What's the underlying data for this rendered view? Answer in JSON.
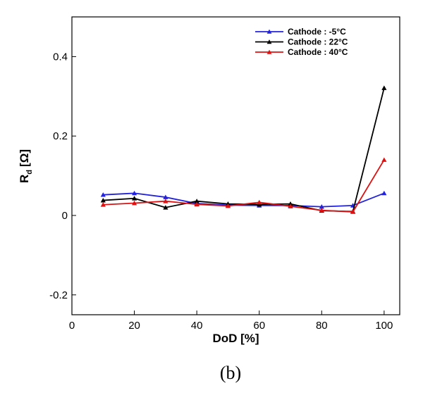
{
  "chart_data": {
    "type": "line",
    "xlabel": "DoD [%]",
    "ylabel_main": "R",
    "ylabel_sub": "d",
    "ylabel_unit": "[Ω]",
    "xlim": [
      0,
      105
    ],
    "ylim": [
      -0.25,
      0.5
    ],
    "xticks": [
      0,
      20,
      40,
      60,
      80,
      100
    ],
    "xtick_labels": [
      "0",
      "20",
      "40",
      "60",
      "80",
      "100"
    ],
    "yticks": [
      -0.2,
      0,
      0.2,
      0.4
    ],
    "ytick_labels": [
      "-0.2",
      "0",
      "0.2",
      "0.4"
    ],
    "x": [
      10,
      20,
      30,
      40,
      50,
      60,
      70,
      80,
      90,
      100
    ],
    "series": [
      {
        "name": "Cathode : -5°C",
        "color": "#2222dd",
        "marker": "triangle",
        "values": [
          0.052,
          0.056,
          0.046,
          0.03,
          0.026,
          0.025,
          0.025,
          0.022,
          0.025,
          0.056
        ]
      },
      {
        "name": "Cathode : 22°C",
        "color": "#000000",
        "marker": "triangle",
        "values": [
          0.038,
          0.043,
          0.02,
          0.036,
          0.029,
          0.028,
          0.029,
          0.012,
          0.01,
          0.321
        ]
      },
      {
        "name": "Cathode : 40°C",
        "color": "#dd1111",
        "marker": "triangle",
        "values": [
          0.027,
          0.031,
          0.036,
          0.028,
          0.024,
          0.033,
          0.023,
          0.013,
          0.009,
          0.14
        ]
      }
    ],
    "legend_position": "top-right",
    "grid": false,
    "caption": "(b)"
  }
}
